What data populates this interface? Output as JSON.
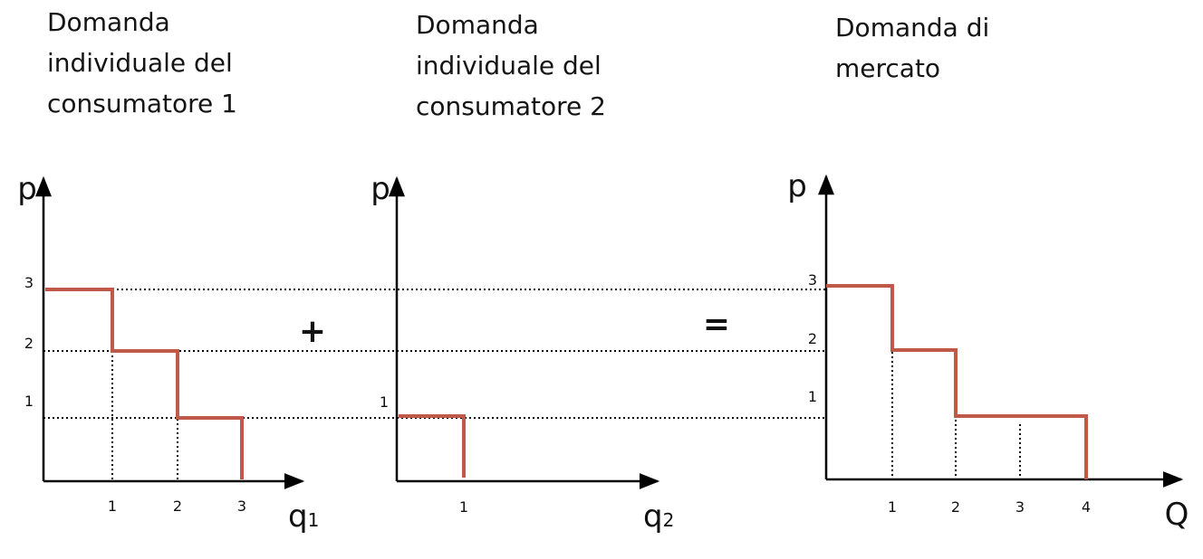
{
  "titles": {
    "consumer1": "Domanda\nindividuale del\nconsumatore 1",
    "consumer2": "Domanda\nindividuale del\nconsumatore 2",
    "market": "Domanda di\nmercato"
  },
  "operators": {
    "plus": "+",
    "equals": "="
  },
  "colors": {
    "demand_line": "#c0594a",
    "axis": "#000000",
    "guide": "#000000"
  },
  "chart_data": [
    {
      "type": "line",
      "step": true,
      "title": "Domanda individuale del consumatore 1",
      "ylabel": "p",
      "xlabel": "q",
      "xlabel_sub": "1",
      "xticks": [
        "1",
        "2",
        "3"
      ],
      "yticks": [
        "1",
        "2",
        "3"
      ],
      "points": [
        [
          0,
          3
        ],
        [
          1,
          3
        ],
        [
          1,
          2
        ],
        [
          2,
          2
        ],
        [
          2,
          1
        ],
        [
          3,
          1
        ],
        [
          3,
          0
        ]
      ]
    },
    {
      "type": "line",
      "step": true,
      "title": "Domanda individuale del consumatore 2",
      "ylabel": "p",
      "xlabel": "q",
      "xlabel_sub": "2",
      "xticks": [
        "1"
      ],
      "yticks": [
        "1"
      ],
      "points": [
        [
          0,
          1
        ],
        [
          1,
          1
        ],
        [
          1,
          0
        ]
      ]
    },
    {
      "type": "line",
      "step": true,
      "title": "Domanda di mercato",
      "ylabel": "p",
      "xlabel": "Q",
      "xticks": [
        "1",
        "2",
        "3",
        "4"
      ],
      "yticks": [
        "1",
        "2",
        "3"
      ],
      "points": [
        [
          0,
          3
        ],
        [
          1,
          3
        ],
        [
          1,
          2
        ],
        [
          2,
          2
        ],
        [
          2,
          1
        ],
        [
          4,
          1
        ],
        [
          4,
          0
        ]
      ]
    }
  ]
}
